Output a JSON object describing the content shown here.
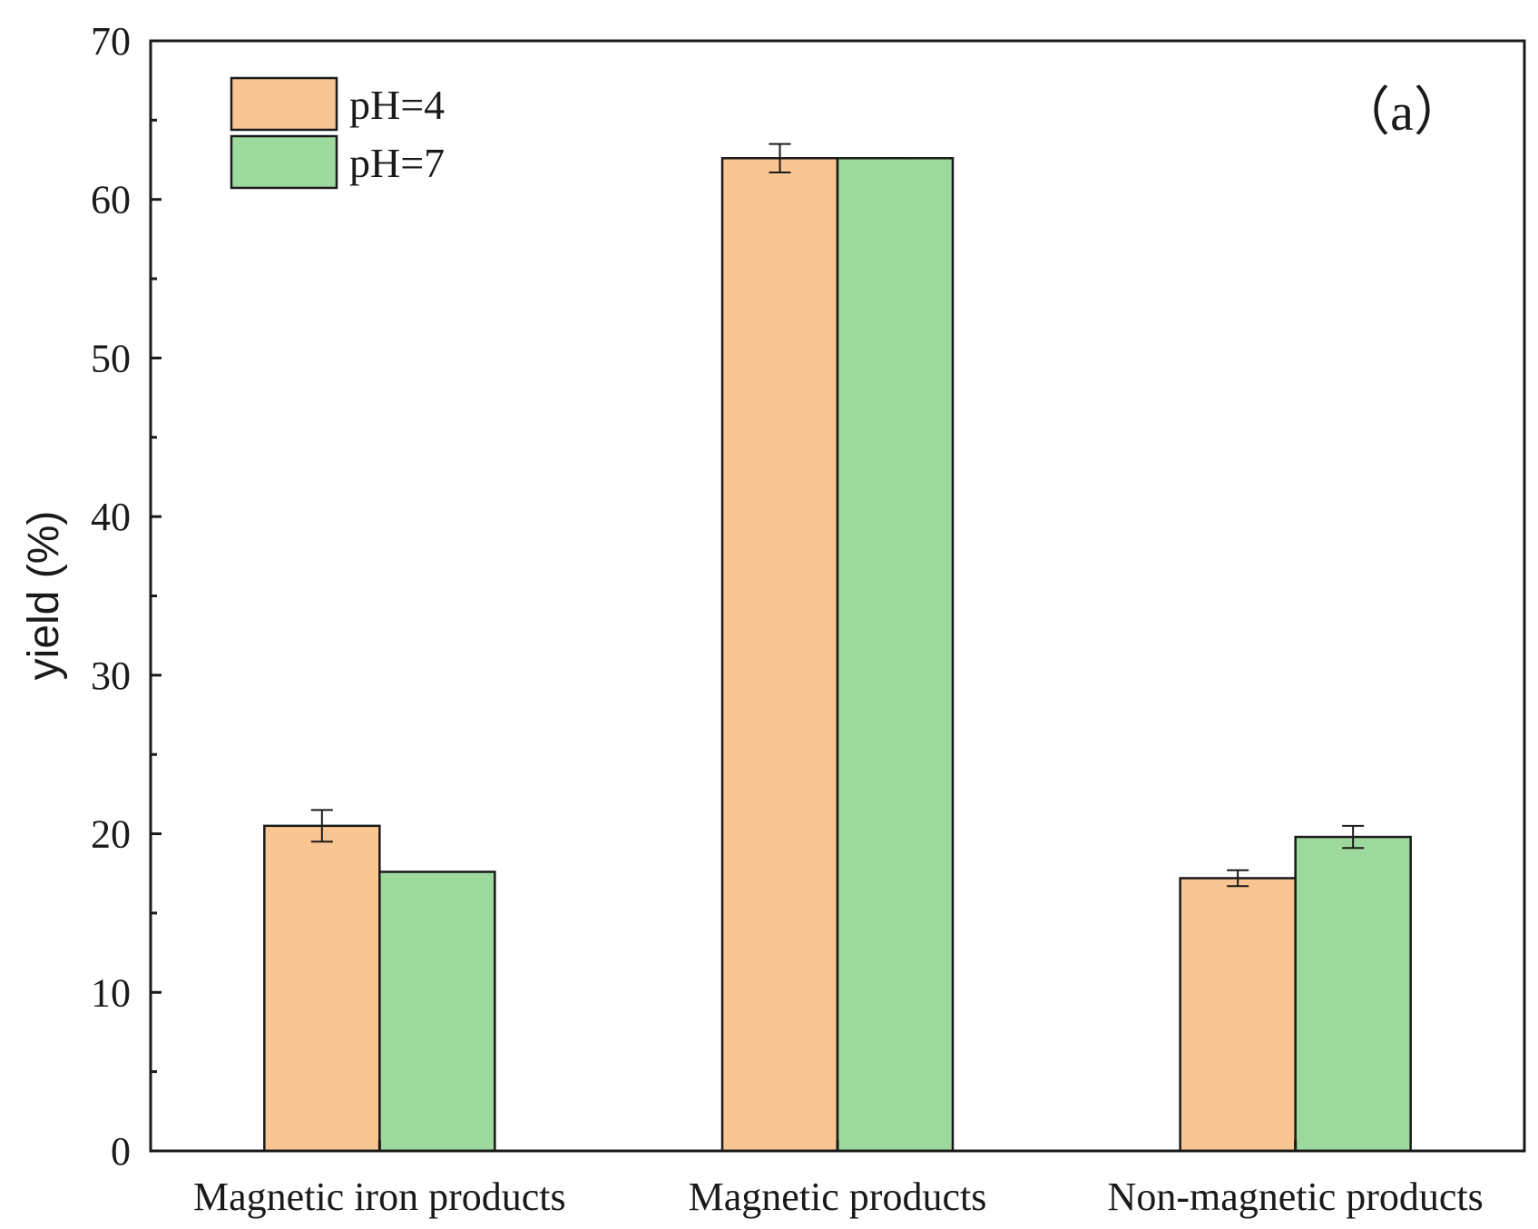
{
  "chart_data": {
    "type": "bar",
    "title": "",
    "panel_label": "（a）",
    "xlabel": "",
    "ylabel": "yield (%)",
    "ylim": [
      0,
      70
    ],
    "yticks": [
      0,
      10,
      20,
      30,
      40,
      50,
      60,
      70
    ],
    "grid": false,
    "legend_position": "top-left",
    "categories": [
      "Magnetic iron products",
      "Magnetic products",
      "Non-magnetic products"
    ],
    "series": [
      {
        "name": "pH=4",
        "color": "#f9c593",
        "values": [
          20.5,
          62.6,
          17.2
        ],
        "errors": [
          1.0,
          0.9,
          0.5
        ]
      },
      {
        "name": "pH=7",
        "color": "#9dd89c",
        "values": [
          17.6,
          62.6,
          19.8
        ],
        "errors": [
          0.0,
          0.0,
          0.7
        ]
      }
    ]
  }
}
